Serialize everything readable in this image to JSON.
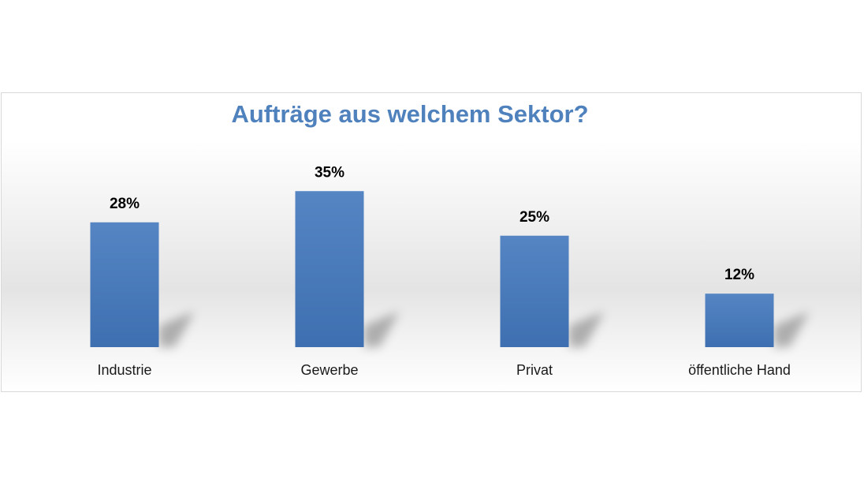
{
  "chart_data": {
    "type": "bar",
    "title": "Aufträge aus welchem Sektor?",
    "categories": [
      "Industrie",
      "Gewerbe",
      "Privat",
      "öffentliche Hand"
    ],
    "values": [
      28,
      35,
      25,
      12
    ],
    "value_labels": [
      "28%",
      "35%",
      "25%",
      "12%"
    ],
    "ylim": [
      0,
      40
    ],
    "grid": false,
    "legend": "none",
    "bar_color": "#4f81bd"
  }
}
